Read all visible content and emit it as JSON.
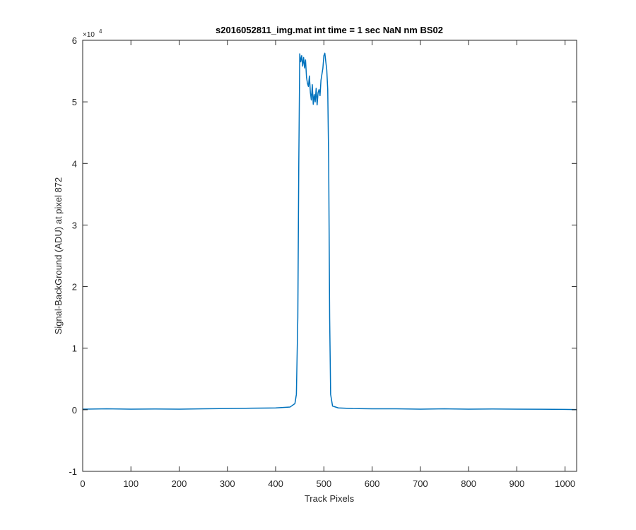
{
  "chart_data": {
    "type": "line",
    "title": "s2016052811_img.mat int time = 1 sec  NaN nm BS02",
    "xlabel": "Track Pixels",
    "ylabel": "Signal-BackGround (ADU) at pixel 872",
    "xlim": [
      0,
      1024
    ],
    "ylim": [
      -10000,
      60000
    ],
    "y_exponent_label": "×10",
    "y_exponent_power": "4",
    "x_ticks": [
      0,
      100,
      200,
      300,
      400,
      500,
      600,
      700,
      800,
      900,
      1000
    ],
    "x_tick_labels": [
      "0",
      "100",
      "200",
      "300",
      "400",
      "500",
      "600",
      "700",
      "800",
      "900",
      "1000"
    ],
    "y_ticks": [
      -10000,
      0,
      10000,
      20000,
      30000,
      40000,
      50000,
      60000
    ],
    "y_tick_labels": [
      "-1",
      "0",
      "1",
      "2",
      "3",
      "4",
      "5",
      "6"
    ],
    "grid": false,
    "box": true,
    "line_color": "#0072BD",
    "series": [
      {
        "x": [
          0,
          50,
          100,
          150,
          200,
          250,
          300,
          350,
          400,
          430,
          440,
          443,
          446,
          448,
          450,
          452,
          454,
          456,
          458,
          460,
          462,
          464,
          466,
          468,
          470,
          472,
          474,
          476,
          478,
          480,
          482,
          484,
          486,
          488,
          490,
          492,
          494,
          496,
          498,
          500,
          502,
          504,
          506,
          508,
          510,
          512,
          514,
          518,
          530,
          560,
          600,
          650,
          700,
          750,
          800,
          850,
          900,
          950,
          1000,
          1024
        ],
        "y": [
          100,
          150,
          100,
          120,
          100,
          150,
          200,
          250,
          300,
          450,
          1000,
          2500,
          15000,
          40000,
          57800,
          56500,
          57500,
          55800,
          57200,
          55500,
          56800,
          54000,
          53000,
          52500,
          54200,
          51500,
          50300,
          52800,
          49600,
          51200,
          50000,
          52200,
          49500,
          51500,
          52000,
          51000,
          53500,
          54500,
          55500,
          57500,
          57900,
          56500,
          55200,
          52000,
          40000,
          15000,
          2500,
          600,
          300,
          200,
          150,
          150,
          100,
          150,
          100,
          120,
          100,
          80,
          50,
          30
        ]
      }
    ]
  }
}
